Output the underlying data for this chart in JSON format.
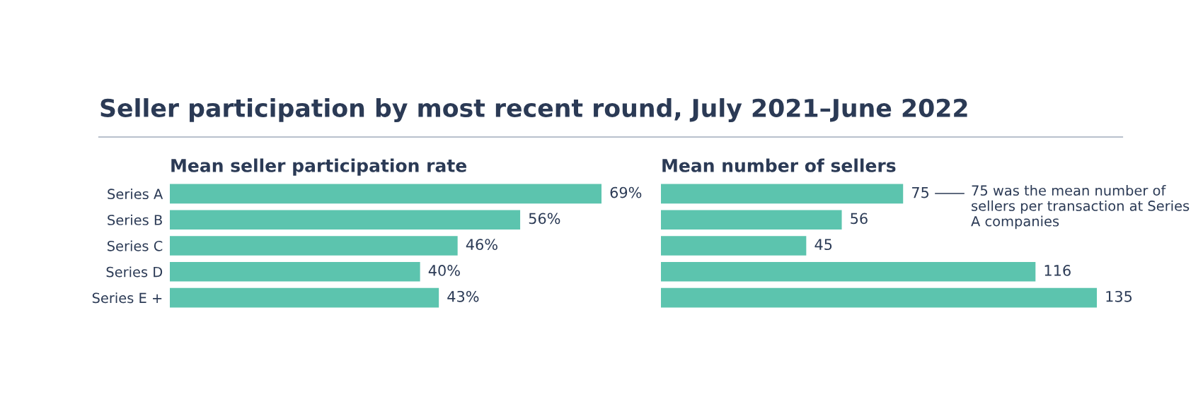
{
  "chart_data": [
    {
      "type": "bar",
      "orientation": "horizontal",
      "title": "Seller participation by most recent round, July 2021–June 2022",
      "subtitle": "Mean seller participation rate",
      "categories": [
        "Series A",
        "Series B",
        "Series C",
        "Series D",
        "Series E +"
      ],
      "series": [
        {
          "color": "#5cc4ae",
          "values": [
            69,
            56,
            46,
            40,
            43
          ],
          "value_labels": [
            "69%",
            "56%",
            "46%",
            "40%",
            "43%"
          ]
        }
      ],
      "grid": false,
      "legend": false
    },
    {
      "type": "bar",
      "orientation": "horizontal",
      "subtitle": "Mean number of sellers",
      "categories": [
        null,
        null,
        null,
        null,
        null
      ],
      "series": [
        {
          "color": "#5cc4ae",
          "values": [
            75,
            56,
            45,
            116,
            135
          ]
        }
      ],
      "data_labels": true,
      "grid": false,
      "legend": false,
      "annotations": [
        "75 was the mean number of sellers per transaction at Series A companies"
      ]
    }
  ]
}
